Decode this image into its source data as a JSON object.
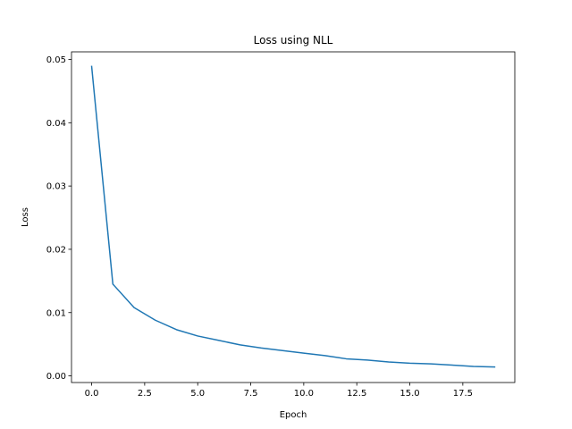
{
  "chart_data": {
    "type": "line",
    "title": "Loss using NLL",
    "xlabel": "Epoch",
    "ylabel": "Loss",
    "xlim": [
      -0.95,
      19.95
    ],
    "ylim": [
      -0.00105,
      0.0512
    ],
    "xticks": [
      0.0,
      2.5,
      5.0,
      7.5,
      10.0,
      12.5,
      15.0,
      17.5
    ],
    "xtick_labels": [
      "0.0",
      "2.5",
      "5.0",
      "7.5",
      "10.0",
      "12.5",
      "15.0",
      "17.5"
    ],
    "yticks": [
      0.0,
      0.01,
      0.02,
      0.03,
      0.04,
      0.05
    ],
    "ytick_labels": [
      "0.00",
      "0.01",
      "0.02",
      "0.03",
      "0.04",
      "0.05"
    ],
    "grid": false,
    "series": [
      {
        "color": "#1f77b4",
        "x": [
          0,
          1,
          2,
          3,
          4,
          5,
          6,
          7,
          8,
          9,
          10,
          11,
          12,
          13,
          14,
          15,
          16,
          17,
          18,
          19
        ],
        "y": [
          0.0489,
          0.0145,
          0.0108,
          0.0088,
          0.0073,
          0.0063,
          0.0056,
          0.0049,
          0.0044,
          0.004,
          0.0036,
          0.0032,
          0.0027,
          0.0025,
          0.0022,
          0.002,
          0.0019,
          0.0017,
          0.0015,
          0.0014
        ]
      }
    ]
  }
}
